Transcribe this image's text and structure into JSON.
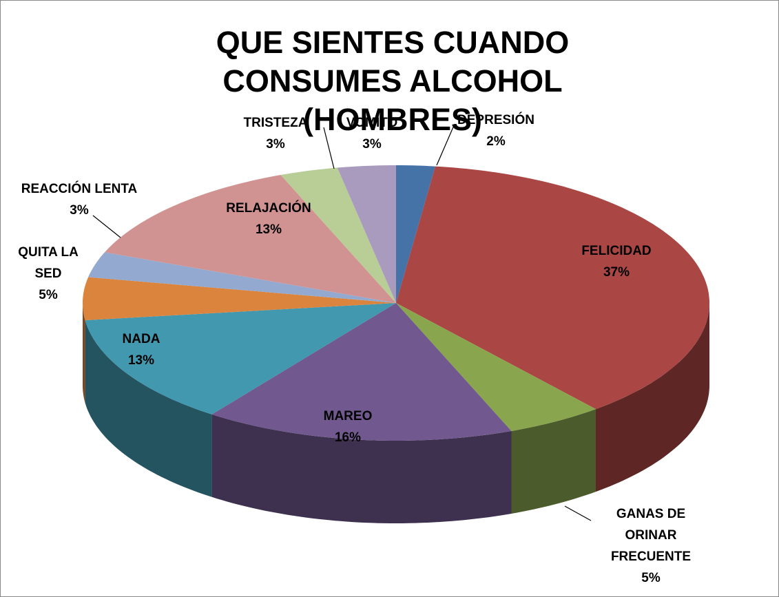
{
  "chart_data": {
    "type": "pie3d",
    "title": "QUE SIENTES CUANDO CONSUMES ALCOHOL (HOMBRES)",
    "categories": [
      "DEPRESIÓN",
      "FELICIDAD",
      "GANAS DE ORINAR FRECUENTE",
      "MAREO",
      "NADA",
      "QUITA LA SED",
      "REACCIÓN LENTA",
      "RELAJACIÓN",
      "TRISTEZA",
      "VOMITO"
    ],
    "values": [
      2,
      37,
      5,
      16,
      13,
      5,
      3,
      13,
      3,
      3
    ],
    "value_labels": [
      "2%",
      "37%",
      "5%",
      "16%",
      "13%",
      "5%",
      "3%",
      "13%",
      "3%",
      "3%"
    ],
    "colors": [
      "#4572a7",
      "#aa4643",
      "#89a54e",
      "#71588f",
      "#4198af",
      "#db843d",
      "#93a9cf",
      "#d19392",
      "#b9cd96",
      "#a99bbd"
    ]
  }
}
